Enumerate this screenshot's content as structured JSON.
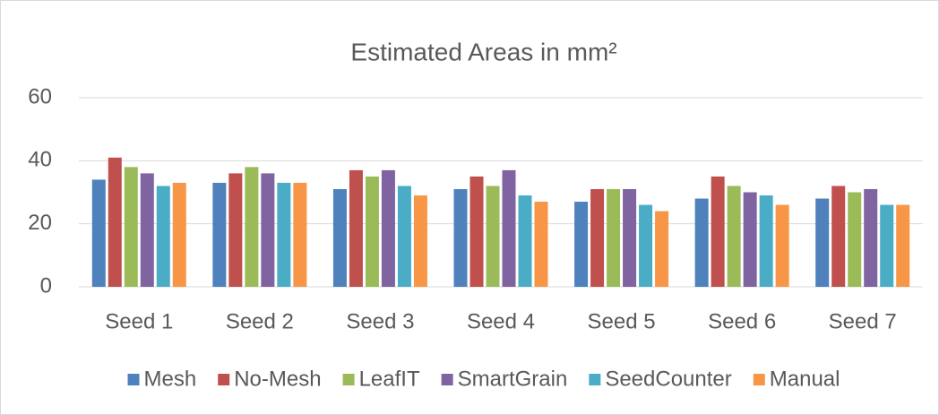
{
  "chart_data": {
    "type": "bar",
    "title": "Estimated Areas in mm²",
    "categories": [
      "Seed 1",
      "Seed 2",
      "Seed 3",
      "Seed 4",
      "Seed 5",
      "Seed 6",
      "Seed 7"
    ],
    "series": [
      {
        "name": "Mesh",
        "color": "#4f81bd",
        "values": [
          34,
          33,
          31,
          31,
          27,
          28,
          28
        ]
      },
      {
        "name": "No-Mesh",
        "color": "#c0504d",
        "values": [
          41,
          36,
          37,
          35,
          31,
          35,
          32
        ]
      },
      {
        "name": "LeafIT",
        "color": "#9bbb59",
        "values": [
          38,
          38,
          35,
          32,
          31,
          32,
          30
        ]
      },
      {
        "name": "SmartGrain",
        "color": "#8064a2",
        "values": [
          36,
          36,
          37,
          37,
          31,
          30,
          31
        ]
      },
      {
        "name": "SeedCounter",
        "color": "#4bacc6",
        "values": [
          32,
          33,
          32,
          29,
          26,
          29,
          26
        ]
      },
      {
        "name": "Manual",
        "color": "#f79646",
        "values": [
          33,
          33,
          29,
          27,
          24,
          26,
          26
        ]
      }
    ],
    "ylim": [
      0,
      60
    ],
    "yticks": [
      0,
      20,
      40,
      60
    ],
    "grid": true,
    "legend": "bottom"
  }
}
